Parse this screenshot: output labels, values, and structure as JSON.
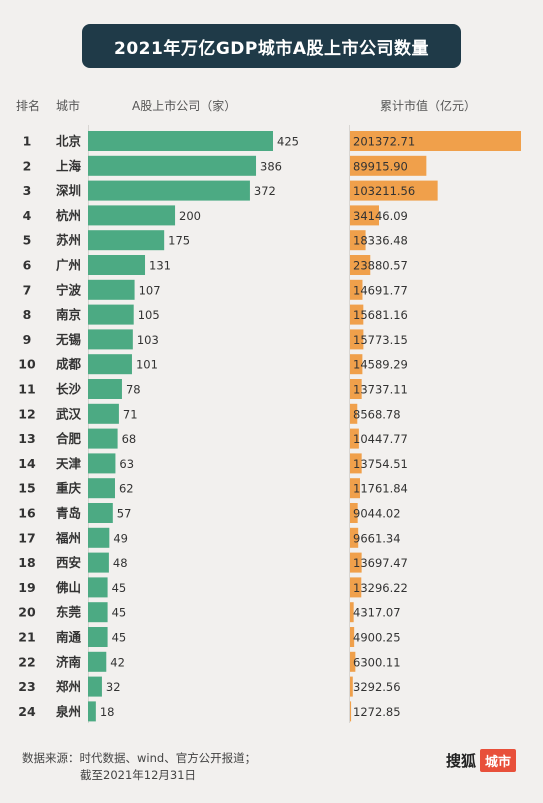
{
  "title": "2021年万亿GDP城市A股上市公司数量",
  "headers": {
    "rank": "排名",
    "city": "城市",
    "companies": "A股上市公司（家）",
    "market_value": "累计市值（亿元）"
  },
  "colors": {
    "title_bg": "#1f3a48",
    "bar_green": "#4caa83",
    "bar_orange": "#f0a04b",
    "brand_red": "#e8503a"
  },
  "chart_data": {
    "type": "bar",
    "categories": [
      "北京",
      "上海",
      "深圳",
      "杭州",
      "苏州",
      "广州",
      "宁波",
      "南京",
      "无锡",
      "成都",
      "长沙",
      "武汉",
      "合肥",
      "天津",
      "重庆",
      "青岛",
      "福州",
      "西安",
      "佛山",
      "东莞",
      "南通",
      "济南",
      "郑州",
      "泉州"
    ],
    "ranks": [
      "1",
      "2",
      "3",
      "4",
      "5",
      "6",
      "7",
      "8",
      "9",
      "10",
      "11",
      "12",
      "13",
      "14",
      "15",
      "16",
      "17",
      "18",
      "19",
      "20",
      "21",
      "22",
      "23",
      "24"
    ],
    "series": [
      {
        "name": "A股上市公司（家）",
        "values": [
          425,
          386,
          372,
          200,
          175,
          131,
          107,
          105,
          103,
          101,
          78,
          71,
          68,
          63,
          62,
          57,
          49,
          48,
          45,
          45,
          45,
          42,
          32,
          18
        ],
        "labels": [
          "425",
          "386",
          "372",
          "200",
          "175",
          "131",
          "107",
          "105",
          "103",
          "101",
          "78",
          "71",
          "68",
          "63",
          "62",
          "57",
          "49",
          "48",
          "45",
          "45",
          "45",
          "42",
          "32",
          "18"
        ]
      },
      {
        "name": "累计市值（亿元）",
        "values": [
          201372.71,
          89915.9,
          103211.56,
          34146.09,
          18336.48,
          23880.57,
          14691.77,
          15681.16,
          15773.15,
          14589.29,
          13737.11,
          8568.78,
          10447.77,
          13754.51,
          11761.84,
          9044.02,
          9661.34,
          13697.47,
          13296.22,
          4317.07,
          4900.25,
          6300.11,
          3292.56,
          1272.85
        ],
        "labels": [
          "201372.71",
          "89915.90",
          "103211.56",
          "34146.09",
          "18336.48",
          "23880.57",
          "14691.77",
          "15681.16",
          "15773.15",
          "14589.29",
          "13737.11",
          "8568.78",
          "10447.77",
          "13754.51",
          "11761.84",
          "9044.02",
          "9661.34",
          "13697.47",
          "13296.22",
          "4317.07",
          "4900.25",
          "6300.11",
          "3292.56",
          "1272.85"
        ]
      }
    ]
  },
  "footer": {
    "source": "数据来源：时代数据、wind、官方公开报道；",
    "date": "截至2021年12月31日"
  },
  "brand": {
    "name": "搜狐",
    "tag": "城市"
  }
}
